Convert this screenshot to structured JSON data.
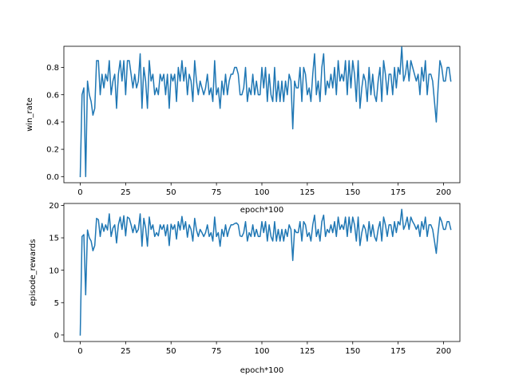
{
  "chart_data": [
    {
      "type": "line",
      "xlabel": "epoch*100",
      "ylabel": "win_rate",
      "xlim": [
        -9,
        209
      ],
      "ylim": [
        -0.045,
        0.955
      ],
      "xticks": [
        0,
        25,
        50,
        75,
        100,
        125,
        150,
        175,
        200
      ],
      "yticks": [
        0.0,
        0.2,
        0.4,
        0.6,
        0.8
      ],
      "ytick_labels": [
        "0.0",
        "0.2",
        "0.4",
        "0.6",
        "0.8"
      ],
      "grid": false,
      "color": "#1f77b4",
      "x_start": 0,
      "x_step": 1,
      "values": [
        0.0,
        0.6,
        0.65,
        0.0,
        0.7,
        0.6,
        0.55,
        0.45,
        0.5,
        0.85,
        0.85,
        0.6,
        0.75,
        0.65,
        0.75,
        0.7,
        0.85,
        0.6,
        0.7,
        0.75,
        0.5,
        0.75,
        0.85,
        0.7,
        0.85,
        0.6,
        0.85,
        0.85,
        0.75,
        0.65,
        0.75,
        0.65,
        0.7,
        0.9,
        0.5,
        0.8,
        0.7,
        0.5,
        0.85,
        0.7,
        0.75,
        0.6,
        0.65,
        0.6,
        0.75,
        0.7,
        0.75,
        0.6,
        0.75,
        0.5,
        0.75,
        0.7,
        0.75,
        0.55,
        0.8,
        0.7,
        0.85,
        0.7,
        0.8,
        0.6,
        0.75,
        0.7,
        0.55,
        0.85,
        0.7,
        0.6,
        0.7,
        0.65,
        0.6,
        0.65,
        0.75,
        0.6,
        0.65,
        0.55,
        0.85,
        0.6,
        0.65,
        0.5,
        0.7,
        0.6,
        0.75,
        0.6,
        0.7,
        0.75,
        0.75,
        0.8,
        0.8,
        0.75,
        0.6,
        0.6,
        0.65,
        0.8,
        0.55,
        0.65,
        0.6,
        0.75,
        0.6,
        0.7,
        0.6,
        0.6,
        0.8,
        0.65,
        0.8,
        0.55,
        0.75,
        0.6,
        0.55,
        0.8,
        0.55,
        0.7,
        0.55,
        0.7,
        0.55,
        0.7,
        0.6,
        0.75,
        0.7,
        0.35,
        0.7,
        0.65,
        0.65,
        0.8,
        0.55,
        0.8,
        0.75,
        0.6,
        0.65,
        0.55,
        0.75,
        0.9,
        0.6,
        0.7,
        0.55,
        0.8,
        0.9,
        0.6,
        0.7,
        0.65,
        0.75,
        0.65,
        0.8,
        0.6,
        0.85,
        0.7,
        0.75,
        0.7,
        0.85,
        0.6,
        0.85,
        0.65,
        0.85,
        0.75,
        0.55,
        0.85,
        0.5,
        0.65,
        0.75,
        0.7,
        0.55,
        0.8,
        0.6,
        0.75,
        0.6,
        0.55,
        0.7,
        0.8,
        0.55,
        0.85,
        0.75,
        0.6,
        0.75,
        0.75,
        0.6,
        0.8,
        0.65,
        0.8,
        0.75,
        0.95,
        0.7,
        0.75,
        0.85,
        0.7,
        0.85,
        0.8,
        0.75,
        0.7,
        0.75,
        0.6,
        0.8,
        0.7,
        0.85,
        0.6,
        0.75,
        0.75,
        0.7,
        0.55,
        0.4,
        0.65,
        0.85,
        0.8,
        0.7,
        0.7,
        0.8,
        0.8,
        0.7
      ]
    },
    {
      "type": "line",
      "xlabel": "epoch*100",
      "ylabel": "episode_rewards",
      "xlim": [
        -9,
        209
      ],
      "ylim": [
        -1.0,
        20.3
      ],
      "xticks": [
        0,
        25,
        50,
        75,
        100,
        125,
        150,
        175,
        200
      ],
      "yticks": [
        0,
        5,
        10,
        15,
        20
      ],
      "ytick_labels": [
        "0",
        "5",
        "10",
        "15",
        "20"
      ],
      "grid": false,
      "color": "#1f77b4",
      "x_start": 0,
      "x_step": 1,
      "values": [
        0.0,
        15.2,
        15.5,
        6.2,
        16.2,
        15.0,
        14.5,
        13.0,
        13.8,
        18.0,
        17.8,
        15.2,
        17.2,
        16.0,
        17.0,
        16.2,
        18.7,
        15.2,
        16.5,
        17.0,
        14.2,
        17.0,
        18.2,
        16.3,
        18.4,
        15.3,
        18.2,
        18.0,
        17.0,
        15.8,
        17.0,
        15.8,
        16.3,
        18.7,
        13.7,
        18.0,
        16.5,
        13.7,
        18.2,
        16.3,
        17.0,
        15.2,
        15.8,
        15.3,
        17.0,
        16.3,
        17.0,
        15.3,
        17.0,
        13.8,
        17.1,
        16.3,
        17.0,
        14.8,
        17.5,
        16.2,
        18.3,
        16.3,
        17.5,
        15.1,
        17.0,
        16.3,
        14.5,
        18.0,
        16.2,
        15.2,
        16.3,
        15.8,
        15.2,
        15.8,
        17.0,
        15.2,
        15.8,
        14.5,
        18.2,
        15.2,
        15.8,
        13.7,
        16.3,
        15.2,
        17.0,
        15.2,
        16.3,
        17.0,
        17.0,
        17.2,
        17.3,
        17.0,
        15.3,
        15.2,
        15.8,
        17.5,
        14.5,
        15.8,
        15.2,
        17.0,
        15.2,
        16.3,
        15.2,
        15.2,
        17.5,
        15.8,
        17.5,
        14.5,
        17.0,
        15.2,
        14.5,
        17.5,
        14.5,
        16.3,
        14.5,
        16.3,
        14.5,
        16.3,
        15.2,
        17.0,
        16.3,
        11.5,
        16.3,
        15.8,
        15.8,
        17.5,
        14.5,
        17.5,
        17.0,
        15.2,
        15.8,
        14.5,
        17.0,
        18.5,
        15.2,
        16.3,
        14.5,
        17.5,
        18.5,
        15.2,
        16.3,
        15.8,
        17.0,
        15.8,
        17.5,
        15.2,
        18.2,
        16.3,
        17.0,
        16.3,
        18.2,
        15.2,
        18.2,
        15.8,
        18.2,
        17.0,
        14.5,
        18.2,
        13.8,
        15.8,
        17.0,
        16.3,
        14.5,
        17.5,
        15.2,
        17.0,
        15.2,
        14.5,
        16.3,
        17.5,
        14.5,
        18.2,
        17.0,
        15.2,
        17.0,
        17.0,
        15.2,
        17.5,
        15.8,
        17.5,
        17.0,
        19.4,
        16.3,
        17.0,
        18.2,
        16.3,
        18.2,
        17.5,
        17.0,
        16.3,
        17.0,
        15.2,
        17.5,
        16.3,
        18.2,
        15.2,
        17.0,
        17.0,
        16.3,
        14.5,
        12.6,
        15.8,
        18.2,
        17.5,
        16.3,
        16.3,
        17.5,
        17.5,
        16.3
      ]
    }
  ]
}
